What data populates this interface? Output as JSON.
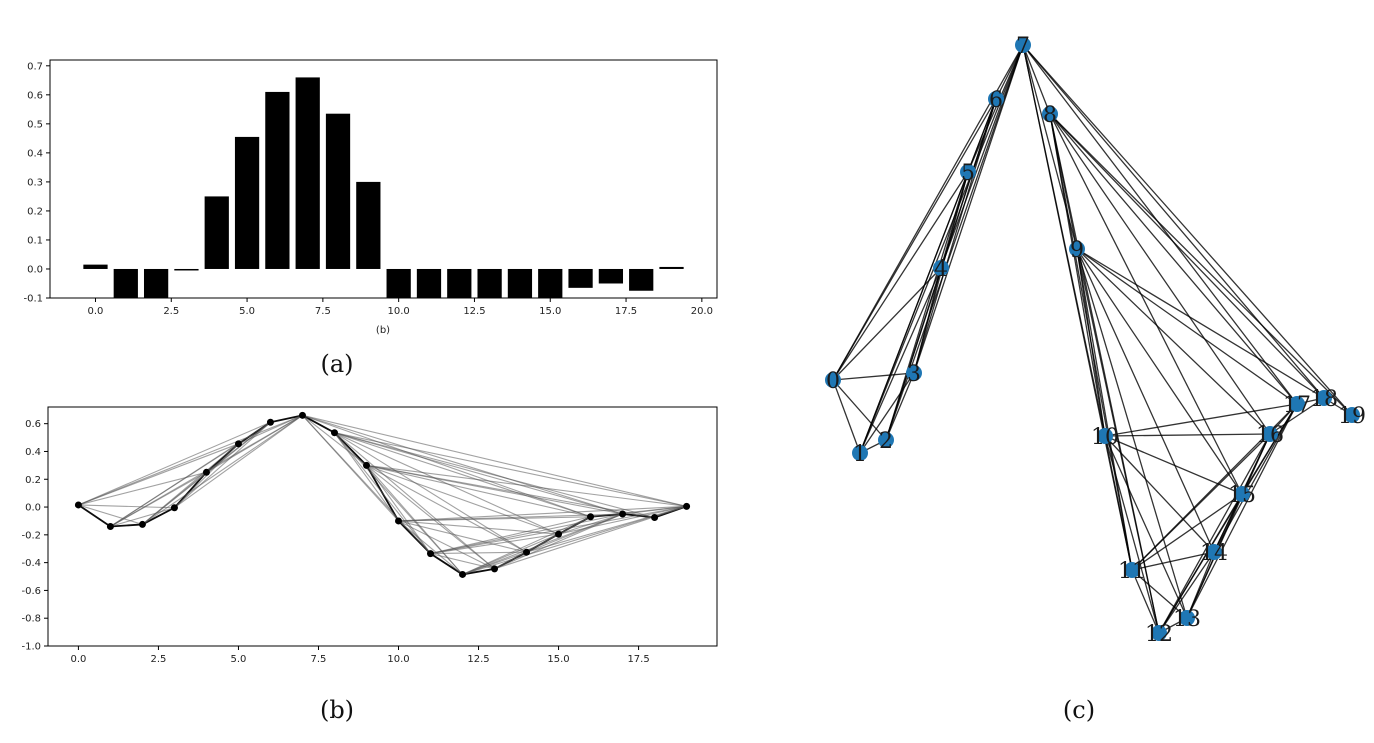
{
  "chart_data": [
    {
      "type": "bar",
      "panel": "(a)",
      "x": [
        0,
        1,
        2,
        3,
        4,
        5,
        6,
        7,
        8,
        9,
        10,
        11,
        12,
        13,
        14,
        15,
        16,
        17,
        18,
        19
      ],
      "values": [
        0.015,
        -0.12,
        -0.12,
        -0.005,
        0.25,
        0.455,
        0.61,
        0.66,
        0.535,
        0.3,
        -0.12,
        -0.12,
        -0.12,
        -0.12,
        -0.12,
        -0.12,
        -0.065,
        -0.05,
        -0.075,
        0.007
      ],
      "xlim": [
        -1.5,
        20.5
      ],
      "ylim": [
        -0.1,
        0.72
      ],
      "xticks": [
        "0.0",
        "2.5",
        "5.0",
        "7.5",
        "10.0",
        "12.5",
        "15.0",
        "17.5",
        "20.0"
      ],
      "yticks": [
        "-0.1",
        "0.0",
        "0.1",
        "0.2",
        "0.3",
        "0.4",
        "0.5",
        "0.6",
        "0.7"
      ],
      "xlabel": "(b)",
      "color": "#000000"
    },
    {
      "type": "line",
      "panel": "(b)",
      "x": [
        0,
        1,
        2,
        3,
        4,
        5,
        6,
        7,
        8,
        9,
        10,
        11,
        12,
        13,
        14,
        15,
        16,
        17,
        18,
        19
      ],
      "y": [
        0.015,
        -0.14,
        -0.125,
        -0.005,
        0.25,
        0.455,
        0.61,
        0.66,
        0.535,
        0.3,
        -0.1,
        -0.335,
        -0.485,
        -0.445,
        -0.325,
        -0.195,
        -0.07,
        -0.05,
        -0.075,
        0.005
      ],
      "edges": [
        [
          0,
          1
        ],
        [
          1,
          2
        ],
        [
          2,
          3
        ],
        [
          3,
          4
        ],
        [
          4,
          5
        ],
        [
          5,
          6
        ],
        [
          6,
          7
        ],
        [
          7,
          8
        ],
        [
          8,
          9
        ],
        [
          9,
          10
        ],
        [
          10,
          11
        ],
        [
          11,
          12
        ],
        [
          12,
          13
        ],
        [
          13,
          14
        ],
        [
          14,
          15
        ],
        [
          15,
          16
        ],
        [
          16,
          17
        ],
        [
          17,
          18
        ],
        [
          18,
          19
        ],
        [
          0,
          2
        ],
        [
          0,
          3
        ],
        [
          0,
          4
        ],
        [
          0,
          5
        ],
        [
          0,
          6
        ],
        [
          0,
          7
        ],
        [
          1,
          3
        ],
        [
          1,
          4
        ],
        [
          1,
          5
        ],
        [
          1,
          6
        ],
        [
          1,
          7
        ],
        [
          2,
          4
        ],
        [
          2,
          5
        ],
        [
          2,
          6
        ],
        [
          2,
          7
        ],
        [
          3,
          5
        ],
        [
          3,
          6
        ],
        [
          3,
          7
        ],
        [
          4,
          6
        ],
        [
          4,
          7
        ],
        [
          5,
          7
        ],
        [
          7,
          9
        ],
        [
          7,
          10
        ],
        [
          7,
          11
        ],
        [
          7,
          16
        ],
        [
          7,
          17
        ],
        [
          7,
          19
        ],
        [
          8,
          10
        ],
        [
          8,
          11
        ],
        [
          8,
          12
        ],
        [
          8,
          13
        ],
        [
          8,
          14
        ],
        [
          8,
          15
        ],
        [
          8,
          16
        ],
        [
          8,
          17
        ],
        [
          8,
          18
        ],
        [
          8,
          19
        ],
        [
          9,
          11
        ],
        [
          9,
          12
        ],
        [
          9,
          13
        ],
        [
          9,
          14
        ],
        [
          9,
          15
        ],
        [
          9,
          16
        ],
        [
          9,
          17
        ],
        [
          9,
          18
        ],
        [
          9,
          19
        ],
        [
          10,
          12
        ],
        [
          10,
          13
        ],
        [
          10,
          14
        ],
        [
          10,
          15
        ],
        [
          10,
          16
        ],
        [
          10,
          17
        ],
        [
          10,
          19
        ],
        [
          11,
          13
        ],
        [
          11,
          14
        ],
        [
          11,
          15
        ],
        [
          11,
          16
        ],
        [
          11,
          17
        ],
        [
          11,
          19
        ],
        [
          12,
          14
        ],
        [
          12,
          15
        ],
        [
          12,
          16
        ],
        [
          12,
          17
        ],
        [
          12,
          19
        ],
        [
          13,
          15
        ],
        [
          13,
          16
        ],
        [
          13,
          17
        ],
        [
          13,
          19
        ],
        [
          14,
          16
        ],
        [
          14,
          17
        ],
        [
          14,
          19
        ],
        [
          15,
          17
        ],
        [
          15,
          19
        ],
        [
          16,
          19
        ],
        [
          17,
          19
        ]
      ],
      "xlim": [
        -0.95,
        19.95
      ],
      "ylim": [
        -1.0,
        0.72
      ],
      "xticks": [
        "0.0",
        "2.5",
        "5.0",
        "7.5",
        "10.0",
        "12.5",
        "15.0",
        "17.5"
      ],
      "yticks": [
        "-1.0",
        "-0.8",
        "-0.6",
        "-0.4",
        "-0.2",
        "0.0",
        "0.2",
        "0.4",
        "0.6"
      ]
    },
    {
      "type": "graph",
      "panel": "(c)",
      "nodes": [
        "0",
        "1",
        "2",
        "3",
        "4",
        "5",
        "6",
        "7",
        "8",
        "9",
        "10",
        "11",
        "12",
        "13",
        "14",
        "15",
        "16",
        "17",
        "18",
        "19"
      ],
      "node_color": "#1f77b4",
      "edges": [
        [
          0,
          1
        ],
        [
          0,
          2
        ],
        [
          0,
          3
        ],
        [
          0,
          4
        ],
        [
          0,
          5
        ],
        [
          0,
          6
        ],
        [
          0,
          7
        ],
        [
          1,
          2
        ],
        [
          1,
          3
        ],
        [
          1,
          4
        ],
        [
          1,
          5
        ],
        [
          1,
          6
        ],
        [
          1,
          7
        ],
        [
          2,
          3
        ],
        [
          2,
          4
        ],
        [
          2,
          5
        ],
        [
          2,
          6
        ],
        [
          2,
          7
        ],
        [
          3,
          4
        ],
        [
          3,
          5
        ],
        [
          3,
          6
        ],
        [
          3,
          7
        ],
        [
          4,
          5
        ],
        [
          4,
          6
        ],
        [
          4,
          7
        ],
        [
          5,
          6
        ],
        [
          5,
          7
        ],
        [
          6,
          7
        ],
        [
          7,
          8
        ],
        [
          7,
          9
        ],
        [
          7,
          10
        ],
        [
          7,
          11
        ],
        [
          7,
          17
        ],
        [
          7,
          18
        ],
        [
          7,
          19
        ],
        [
          8,
          9
        ],
        [
          8,
          10
        ],
        [
          8,
          11
        ],
        [
          8,
          12
        ],
        [
          8,
          15
        ],
        [
          8,
          16
        ],
        [
          8,
          17
        ],
        [
          8,
          18
        ],
        [
          8,
          19
        ],
        [
          9,
          10
        ],
        [
          9,
          11
        ],
        [
          9,
          12
        ],
        [
          9,
          13
        ],
        [
          9,
          14
        ],
        [
          9,
          15
        ],
        [
          9,
          16
        ],
        [
          9,
          17
        ],
        [
          9,
          18
        ],
        [
          10,
          11
        ],
        [
          10,
          12
        ],
        [
          10,
          13
        ],
        [
          10,
          14
        ],
        [
          10,
          15
        ],
        [
          10,
          16
        ],
        [
          10,
          17
        ],
        [
          11,
          12
        ],
        [
          11,
          13
        ],
        [
          11,
          14
        ],
        [
          11,
          15
        ],
        [
          11,
          16
        ],
        [
          11,
          17
        ],
        [
          12,
          13
        ],
        [
          12,
          14
        ],
        [
          12,
          15
        ],
        [
          12,
          16
        ],
        [
          12,
          17
        ],
        [
          13,
          14
        ],
        [
          13,
          15
        ],
        [
          13,
          16
        ],
        [
          13,
          17
        ],
        [
          14,
          15
        ],
        [
          14,
          16
        ],
        [
          14,
          17
        ],
        [
          15,
          16
        ],
        [
          15,
          17
        ],
        [
          16,
          17
        ],
        [
          16,
          18
        ],
        [
          17,
          18
        ],
        [
          18,
          19
        ]
      ]
    }
  ],
  "captions": {
    "a": "(a)",
    "b": "(b)",
    "c": "(c)"
  }
}
